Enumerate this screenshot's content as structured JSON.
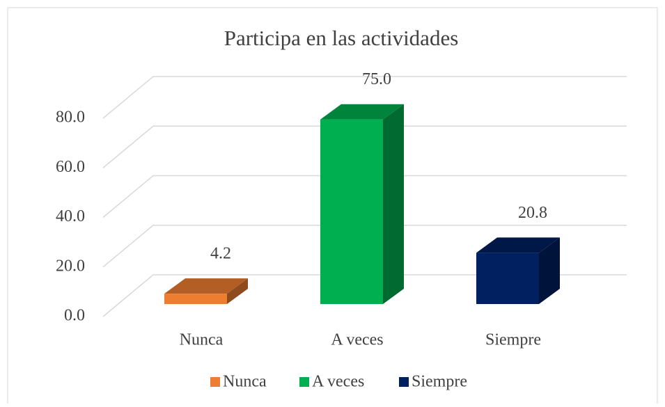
{
  "chart_data": {
    "type": "bar3d",
    "title": "Participa en las actividades",
    "categories": [
      "Nunca",
      "A veces",
      "Siempre"
    ],
    "values": [
      4.2,
      75.0,
      20.8
    ],
    "value_labels": [
      "4.2",
      "75.0",
      "20.8"
    ],
    "colors": [
      "#ed7d31",
      "#00b050",
      "#002060"
    ],
    "ylim": [
      0,
      80
    ],
    "yticks": [
      {
        "value": 0,
        "label": "0.0"
      },
      {
        "value": 20,
        "label": "20.0"
      },
      {
        "value": 40,
        "label": "40.0"
      },
      {
        "value": 60,
        "label": "60.0"
      },
      {
        "value": 80,
        "label": "80.0"
      }
    ],
    "grid": true,
    "legend": "bottom"
  }
}
